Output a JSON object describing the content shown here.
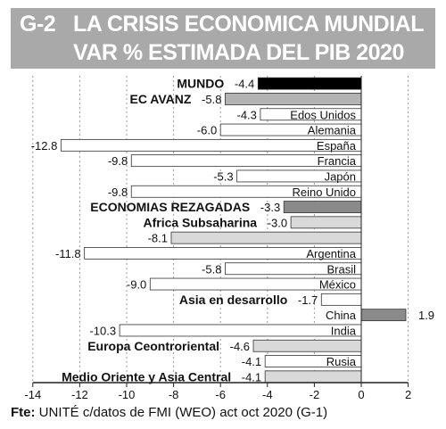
{
  "header": {
    "code": "G-2",
    "title_line1": "LA CRISIS ECONOMICA MUNDIAL",
    "title_line2": "VAR % ESTIMADA DEL PIB 2020"
  },
  "source": {
    "prefix": "Fte:",
    "text": " UNITÉ c/datos de FMI (WEO) act oct 2020 (G-1)"
  },
  "colors": {
    "world": "#000000",
    "region": "#b3b3b3",
    "dark_region": "#8a8a8a",
    "light_region": "#d9d9d9",
    "country": "#ffffff"
  },
  "chart_data": {
    "type": "bar",
    "orientation": "horizontal",
    "xlim": [
      -14,
      2
    ],
    "x_ticks": [
      -14,
      -12,
      -10,
      -8,
      -6,
      -4,
      -2,
      0,
      2
    ],
    "grid": "vertical dashed",
    "categories": [
      "MUNDO",
      "EC AVANZ",
      "Edos Unidos",
      "Alemania",
      "España",
      "Francia",
      "Japón",
      "Reino Unido",
      "ECONOMIAS REZAGADAS",
      "Africa Subsaharina",
      "",
      "Argentina",
      "Brasil",
      "México",
      "Asia en desarrollo",
      "China",
      "India",
      "Europa Ceontroriental",
      "Rusia",
      "Medio Oriente y Asia Central"
    ],
    "values": [
      -4.4,
      -5.8,
      -4.3,
      -6.0,
      -12.8,
      -9.8,
      -5.3,
      -9.8,
      -3.3,
      -3.0,
      -8.1,
      -11.8,
      -5.8,
      -9.0,
      -1.7,
      1.9,
      -10.3,
      -4.6,
      -4.1,
      -4.1
    ],
    "value_labels": [
      "-4.4",
      "-5.8",
      "-4.3",
      "-6.0",
      "-12.8",
      "-9.8",
      "-5.3",
      "-9.8",
      "-3.3",
      "-3.0",
      "-8.1",
      "-11.8",
      "-5.8",
      "-9.0",
      "-1.7",
      "1.9",
      "-10.3",
      "-4.6",
      "-4.1",
      "-4.1"
    ],
    "bold_categories": [
      "MUNDO",
      "EC AVANZ",
      "ECONOMIAS REZAGADAS",
      "Africa Subsaharina",
      "Asia en desarrollo",
      "Europa Ceontroriental",
      "Medio Oriente y Asia Central"
    ],
    "bar_styles": [
      "world",
      "region",
      "country",
      "country",
      "country",
      "country",
      "country",
      "country",
      "dark_region",
      "light_region",
      "light_region",
      "country",
      "country",
      "country",
      "country",
      "dark_region",
      "country",
      "light_region",
      "country",
      "light_region"
    ]
  }
}
